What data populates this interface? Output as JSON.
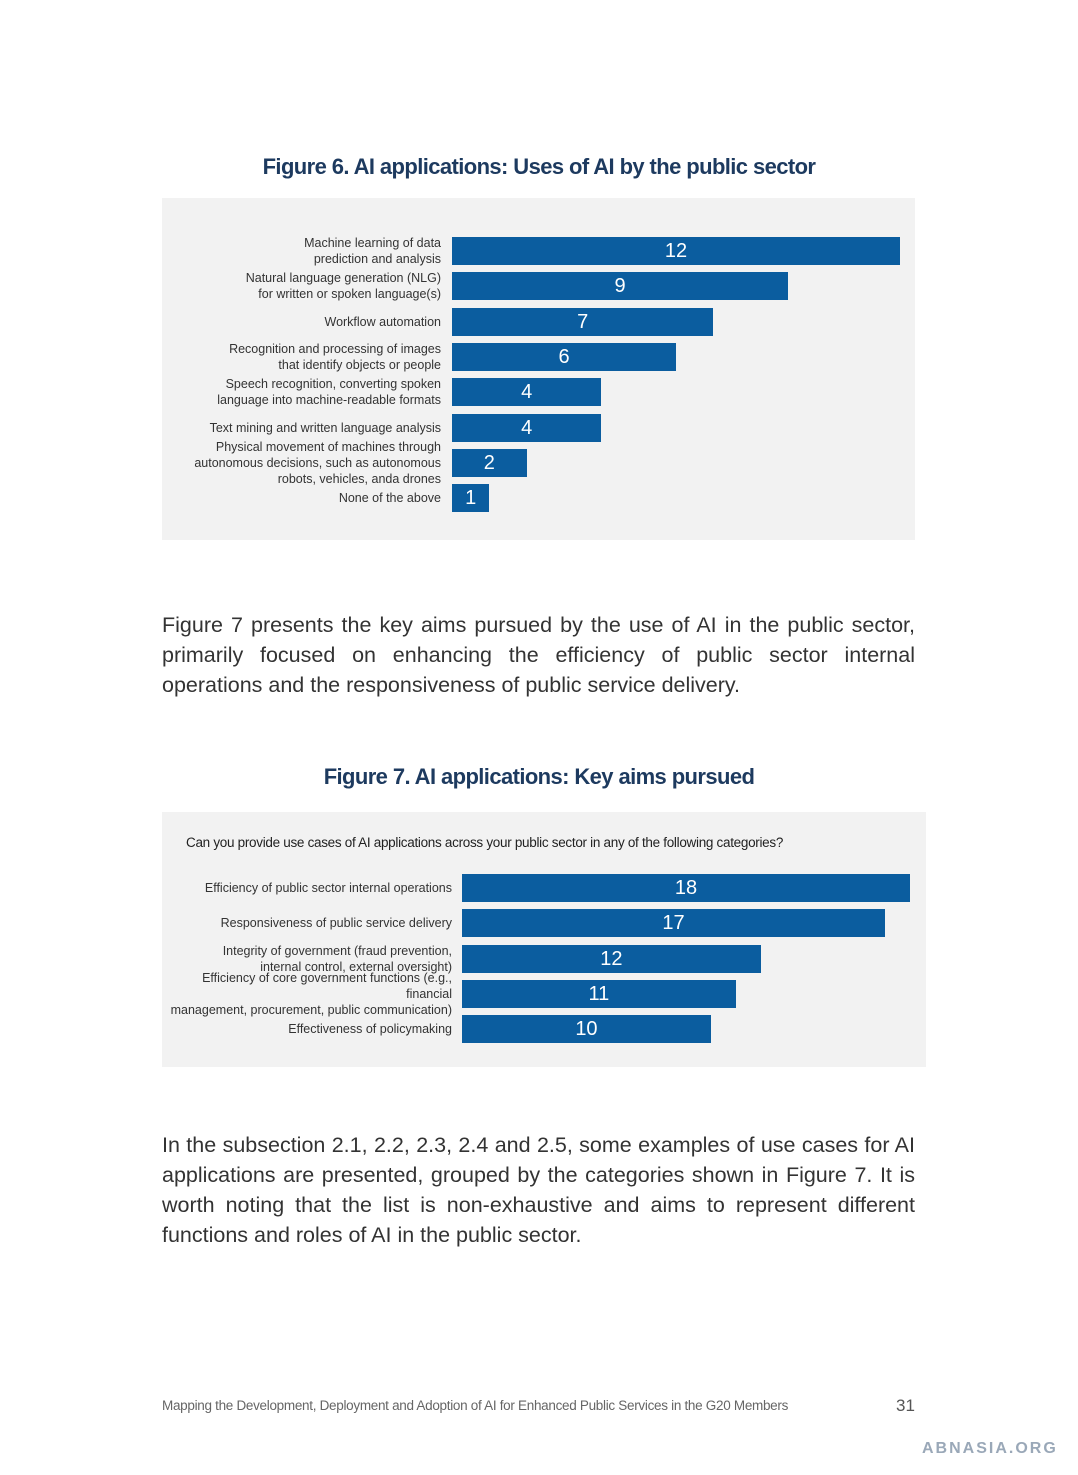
{
  "chart_data": [
    {
      "type": "bar",
      "orientation": "horizontal",
      "title": "Figure 6. AI applications: Uses of AI by the public sector",
      "categories": [
        "Machine learning of data\nprediction and analysis",
        "Natural language generation (NLG)\nfor written or spoken language(s)",
        "Workflow automation",
        "Recognition and processing of images\nthat identify objects or people",
        "Speech recognition, converting spoken\nlanguage into machine-readable formats",
        "Text mining and written language analysis",
        "Physical movement of machines through\nautonomous decisions, such as autonomous\nrobots, vehicles, anda drones",
        "None of the above"
      ],
      "values": [
        12,
        9,
        7,
        6,
        4,
        4,
        2,
        1
      ],
      "color": "#0b5d9f"
    },
    {
      "type": "bar",
      "orientation": "horizontal",
      "title": "Figure 7. AI applications: Key aims pursued",
      "subtitle": "Can you provide use cases of AI applications across your public sector in any of the following categories?",
      "categories": [
        "Efficiency of public sector internal operations",
        "Responsiveness of public service delivery",
        "Integrity of government (fraud prevention,\ninternal control, external oversight)",
        "Efficiency of core government functions (e.g., financial\nmanagement, procurement, public communication)",
        "Effectiveness of policymaking"
      ],
      "values": [
        18,
        17,
        12,
        11,
        10
      ],
      "color": "#0b5d9f"
    }
  ],
  "paragraphs": [
    "Figure 7 presents the key aims pursued by the use of AI in the public sector, primarily focused on enhancing the efficiency of public sector internal operations and the responsiveness of public service delivery.",
    "In the subsection 2.1, 2.2, 2.3, 2.4 and 2.5, some examples of use cases for AI applications are presented, grouped by the categories shown in Figure 7. It is worth noting that the list is non-exhaustive and aims to represent different functions and roles of AI in the public sector."
  ],
  "footer": {
    "text": "Mapping the Development, Deployment and Adoption of AI for Enhanced Public Services in the G20 Members",
    "page_number": "31"
  },
  "watermark": "ABNASIA.ORG"
}
